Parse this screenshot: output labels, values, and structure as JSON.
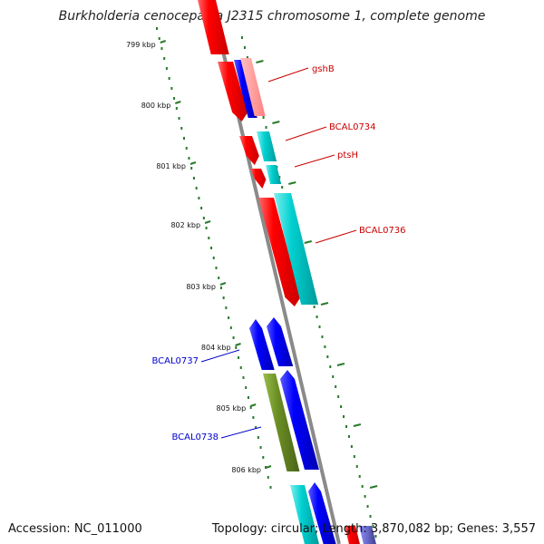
{
  "title": "Burkholderia cenocepacia J2315 chromosome 1, complete genome",
  "footer": {
    "accession": "Accession: NC_011000",
    "summary": "Topology: circular; Length: 3,870,082 bp; Genes: 3,557"
  },
  "ticks": [
    "799 kbp",
    "800 kbp",
    "801 kbp",
    "802 kbp",
    "803 kbp",
    "804 kbp",
    "805 kbp",
    "806 kbp"
  ],
  "gene_labels": [
    "gshB",
    "BCAL0734",
    "ptsH",
    "BCAL0736",
    "BCAL0737",
    "BCAL0738"
  ],
  "colors": {
    "forward_cds": "#ff0000",
    "reverse_cds": "#0000ff",
    "rna": "#00cccc",
    "other": "#6b8e23",
    "label_forward": "#cc0000",
    "label_reverse": "#0000cc",
    "tick_marks": "#2a7a2a",
    "backbone": "#888888"
  }
}
